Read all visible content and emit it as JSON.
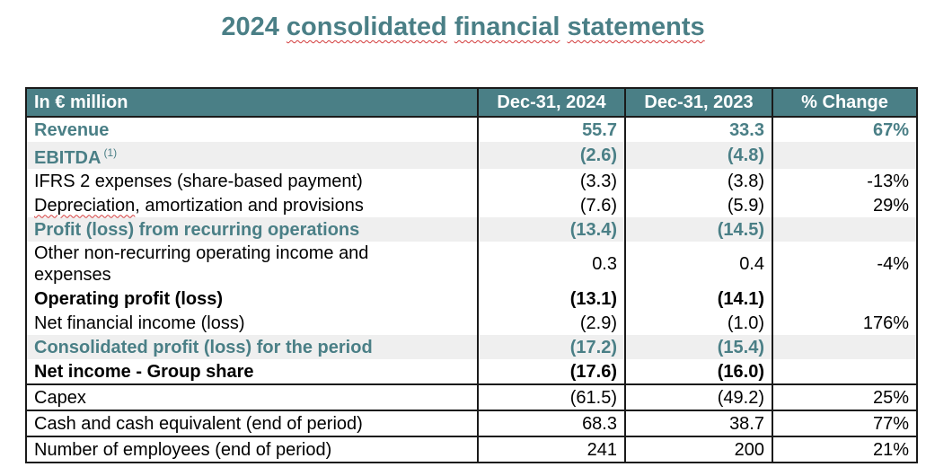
{
  "title": {
    "part1": "2024",
    "part2": "consolidated",
    "part3": "financial",
    "part4": "statements"
  },
  "table": {
    "headers": [
      "In € million",
      "Dec-31, 2024",
      "Dec-31, 2023",
      "% Change"
    ],
    "rows": [
      {
        "label": "Revenue",
        "v2024": "55.7",
        "v2023": "33.3",
        "change": "67%"
      },
      {
        "label": "EBITDA",
        "note": "(1)",
        "v2024": "(2.6)",
        "v2023": "(4.8)",
        "change": ""
      },
      {
        "label": "IFRS 2 expenses (share-based payment)",
        "v2024": "(3.3)",
        "v2023": "(3.8)",
        "change": "-13%"
      },
      {
        "label_a": "Depreciation",
        "label_b": ", amortization and provisions",
        "v2024": "(7.6)",
        "v2023": "(5.9)",
        "change": "29%"
      },
      {
        "label": "Profit (loss) from recurring operations",
        "v2024": "(13.4)",
        "v2023": "(14.5)",
        "change": ""
      },
      {
        "label_l1": "Other non-recurring operating income and",
        "label_l2": "expenses",
        "v2024": "0.3",
        "v2023": "0.4",
        "change": "-4%"
      },
      {
        "label": "Operating profit (loss)",
        "v2024": "(13.1)",
        "v2023": "(14.1)",
        "change": ""
      },
      {
        "label": "Net financial income (loss)",
        "v2024": "(2.9)",
        "v2023": "(1.0)",
        "change": "176%"
      },
      {
        "label": "Consolidated profit (loss) for the period",
        "v2024": "(17.2)",
        "v2023": "(15.4)",
        "change": ""
      },
      {
        "label": "Net income - Group share",
        "v2024": "(17.6)",
        "v2023": "(16.0)",
        "change": ""
      },
      {
        "label": "Capex",
        "v2024": "(61.5)",
        "v2023": "(49.2)",
        "change": "25%"
      },
      {
        "label": "Cash and cash equivalent (end of period)",
        "v2024": "68.3",
        "v2023": "38.7",
        "change": "77%"
      },
      {
        "label": "Number of employees (end of period)",
        "v2024": "241",
        "v2023": "200",
        "change": "21%"
      }
    ]
  },
  "colors": {
    "accent": "#4a7f86",
    "row_shade": "#efefef",
    "spellcheck": "#d23a3a"
  }
}
